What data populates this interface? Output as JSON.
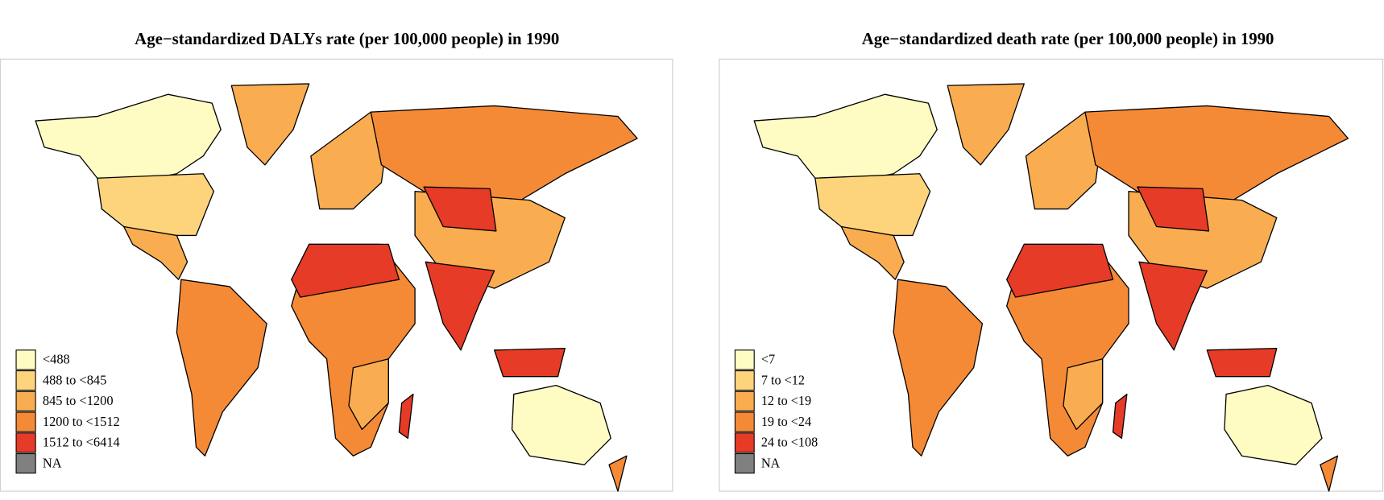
{
  "maps": [
    {
      "title": "Age−standardized DALYs rate (per 100,000 people) in 1990",
      "legend": [
        {
          "label": "<488",
          "color": "#fefcc2"
        },
        {
          "label": "488 to <845",
          "color": "#fdd47c"
        },
        {
          "label": "845 to <1200",
          "color": "#f9ad50"
        },
        {
          "label": "1200 to <1512",
          "color": "#f58a36"
        },
        {
          "label": "1512 to <6414",
          "color": "#e63b27"
        },
        {
          "label": "NA",
          "color": "#808080"
        }
      ]
    },
    {
      "title": "Age−standardized death rate (per 100,000 people) in 1990",
      "legend": [
        {
          "label": "<7",
          "color": "#fefcc2"
        },
        {
          "label": "7 to <12",
          "color": "#fdd47c"
        },
        {
          "label": "12 to <19",
          "color": "#f9ad50"
        },
        {
          "label": "19 to <24",
          "color": "#f58a36"
        },
        {
          "label": "24 to <108",
          "color": "#e63b27"
        },
        {
          "label": "NA",
          "color": "#808080"
        }
      ]
    }
  ]
}
